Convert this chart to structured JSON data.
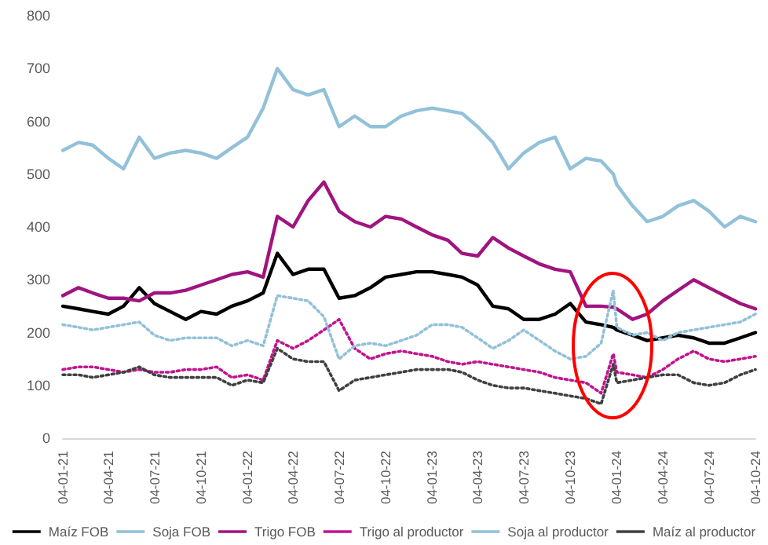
{
  "chart_data": {
    "type": "line",
    "x": [
      "2021-01-04",
      "2021-02-04",
      "2021-03-04",
      "2021-04-04",
      "2021-05-04",
      "2021-06-04",
      "2021-07-04",
      "2021-08-04",
      "2021-09-04",
      "2021-10-04",
      "2021-11-04",
      "2021-12-04",
      "2022-01-04",
      "2022-02-04",
      "2022-03-04",
      "2022-04-04",
      "2022-05-04",
      "2022-06-04",
      "2022-07-04",
      "2022-08-04",
      "2022-09-04",
      "2022-10-04",
      "2022-11-04",
      "2022-12-04",
      "2023-01-04",
      "2023-02-04",
      "2023-03-04",
      "2023-04-04",
      "2023-05-04",
      "2023-06-04",
      "2023-07-04",
      "2023-08-04",
      "2023-09-04",
      "2023-10-04",
      "2023-11-04",
      "2023-12-04",
      "2023-12-28",
      "2024-01-04",
      "2024-02-04",
      "2024-03-04",
      "2024-04-04",
      "2024-05-04",
      "2024-06-04",
      "2024-07-04",
      "2024-08-04",
      "2024-09-04",
      "2024-10-04"
    ],
    "series": [
      {
        "name": "Maíz FOB",
        "color": "#000000",
        "line_style": "solid",
        "values": [
          250,
          245,
          240,
          235,
          250,
          285,
          255,
          240,
          225,
          240,
          235,
          250,
          260,
          275,
          350,
          310,
          320,
          320,
          265,
          270,
          285,
          305,
          310,
          315,
          315,
          310,
          305,
          290,
          250,
          245,
          225,
          225,
          235,
          255,
          220,
          215,
          210,
          205,
          195,
          185,
          190,
          195,
          190,
          180,
          180,
          190,
          200
        ]
      },
      {
        "name": "Soja FOB",
        "color": "#92c1d9",
        "line_style": "solid",
        "values": [
          545,
          560,
          555,
          530,
          510,
          570,
          530,
          540,
          545,
          540,
          530,
          550,
          570,
          625,
          700,
          660,
          650,
          660,
          590,
          610,
          590,
          590,
          610,
          620,
          625,
          620,
          615,
          590,
          560,
          510,
          540,
          560,
          570,
          510,
          530,
          525,
          500,
          480,
          440,
          410,
          420,
          440,
          450,
          430,
          400,
          420,
          410
        ]
      },
      {
        "name": "Trigo FOB",
        "color": "#a0147f",
        "line_style": "solid",
        "values": [
          270,
          285,
          275,
          265,
          265,
          260,
          275,
          275,
          280,
          290,
          300,
          310,
          315,
          305,
          420,
          400,
          450,
          485,
          430,
          410,
          400,
          420,
          415,
          400,
          385,
          375,
          350,
          345,
          380,
          360,
          345,
          330,
          320,
          315,
          250,
          250,
          248,
          245,
          225,
          235,
          260,
          280,
          300,
          285,
          270,
          255,
          245
        ]
      },
      {
        "name": "Trigo al productor",
        "color": "#c0148f",
        "line_style": "dotted",
        "values": [
          130,
          135,
          135,
          130,
          125,
          130,
          125,
          125,
          130,
          130,
          135,
          115,
          120,
          110,
          185,
          170,
          185,
          205,
          225,
          170,
          150,
          160,
          165,
          160,
          155,
          145,
          140,
          145,
          140,
          135,
          130,
          125,
          115,
          110,
          105,
          85,
          160,
          125,
          120,
          115,
          130,
          150,
          165,
          150,
          145,
          150,
          155
        ]
      },
      {
        "name": "Soja al productor",
        "color": "#92c1d9",
        "line_style": "dotted",
        "values": [
          215,
          210,
          205,
          210,
          215,
          220,
          195,
          185,
          190,
          190,
          190,
          175,
          185,
          175,
          270,
          265,
          260,
          230,
          150,
          175,
          180,
          175,
          185,
          195,
          215,
          215,
          210,
          190,
          170,
          185,
          205,
          185,
          165,
          150,
          155,
          180,
          280,
          210,
          195,
          200,
          185,
          200,
          205,
          210,
          215,
          220,
          235
        ]
      },
      {
        "name": "Maíz al productor",
        "color": "#404040",
        "line_style": "dotted",
        "values": [
          120,
          120,
          115,
          120,
          125,
          135,
          120,
          115,
          115,
          115,
          115,
          100,
          110,
          105,
          170,
          150,
          145,
          145,
          90,
          110,
          115,
          120,
          125,
          130,
          130,
          130,
          125,
          110,
          100,
          95,
          95,
          90,
          85,
          80,
          75,
          65,
          140,
          105,
          110,
          115,
          120,
          120,
          105,
          100,
          105,
          120,
          130
        ]
      }
    ],
    "xlim": [
      "2021-01-04",
      "2024-10-04"
    ],
    "xticks": [
      {
        "value": "2021-01-04",
        "label": "04-01-21"
      },
      {
        "value": "2021-04-04",
        "label": "04-04-21"
      },
      {
        "value": "2021-07-04",
        "label": "04-07-21"
      },
      {
        "value": "2021-10-04",
        "label": "04-10-21"
      },
      {
        "value": "2022-01-04",
        "label": "04-01-22"
      },
      {
        "value": "2022-04-04",
        "label": "04-04-22"
      },
      {
        "value": "2022-07-04",
        "label": "04-07-22"
      },
      {
        "value": "2022-10-04",
        "label": "04-10-22"
      },
      {
        "value": "2023-01-04",
        "label": "04-01-23"
      },
      {
        "value": "2023-04-04",
        "label": "04-04-23"
      },
      {
        "value": "2023-07-04",
        "label": "04-07-23"
      },
      {
        "value": "2023-10-04",
        "label": "04-10-23"
      },
      {
        "value": "2024-01-04",
        "label": "04-01-24"
      },
      {
        "value": "2024-04-04",
        "label": "04-04-24"
      },
      {
        "value": "2024-07-04",
        "label": "04-07-24"
      },
      {
        "value": "2024-10-04",
        "label": "04-10-24"
      }
    ],
    "ylim": [
      0,
      800
    ],
    "yticks": [
      0,
      100,
      200,
      300,
      400,
      500,
      600,
      700,
      800
    ],
    "grid": false,
    "legend": "bottom",
    "marker": "none"
  }
}
